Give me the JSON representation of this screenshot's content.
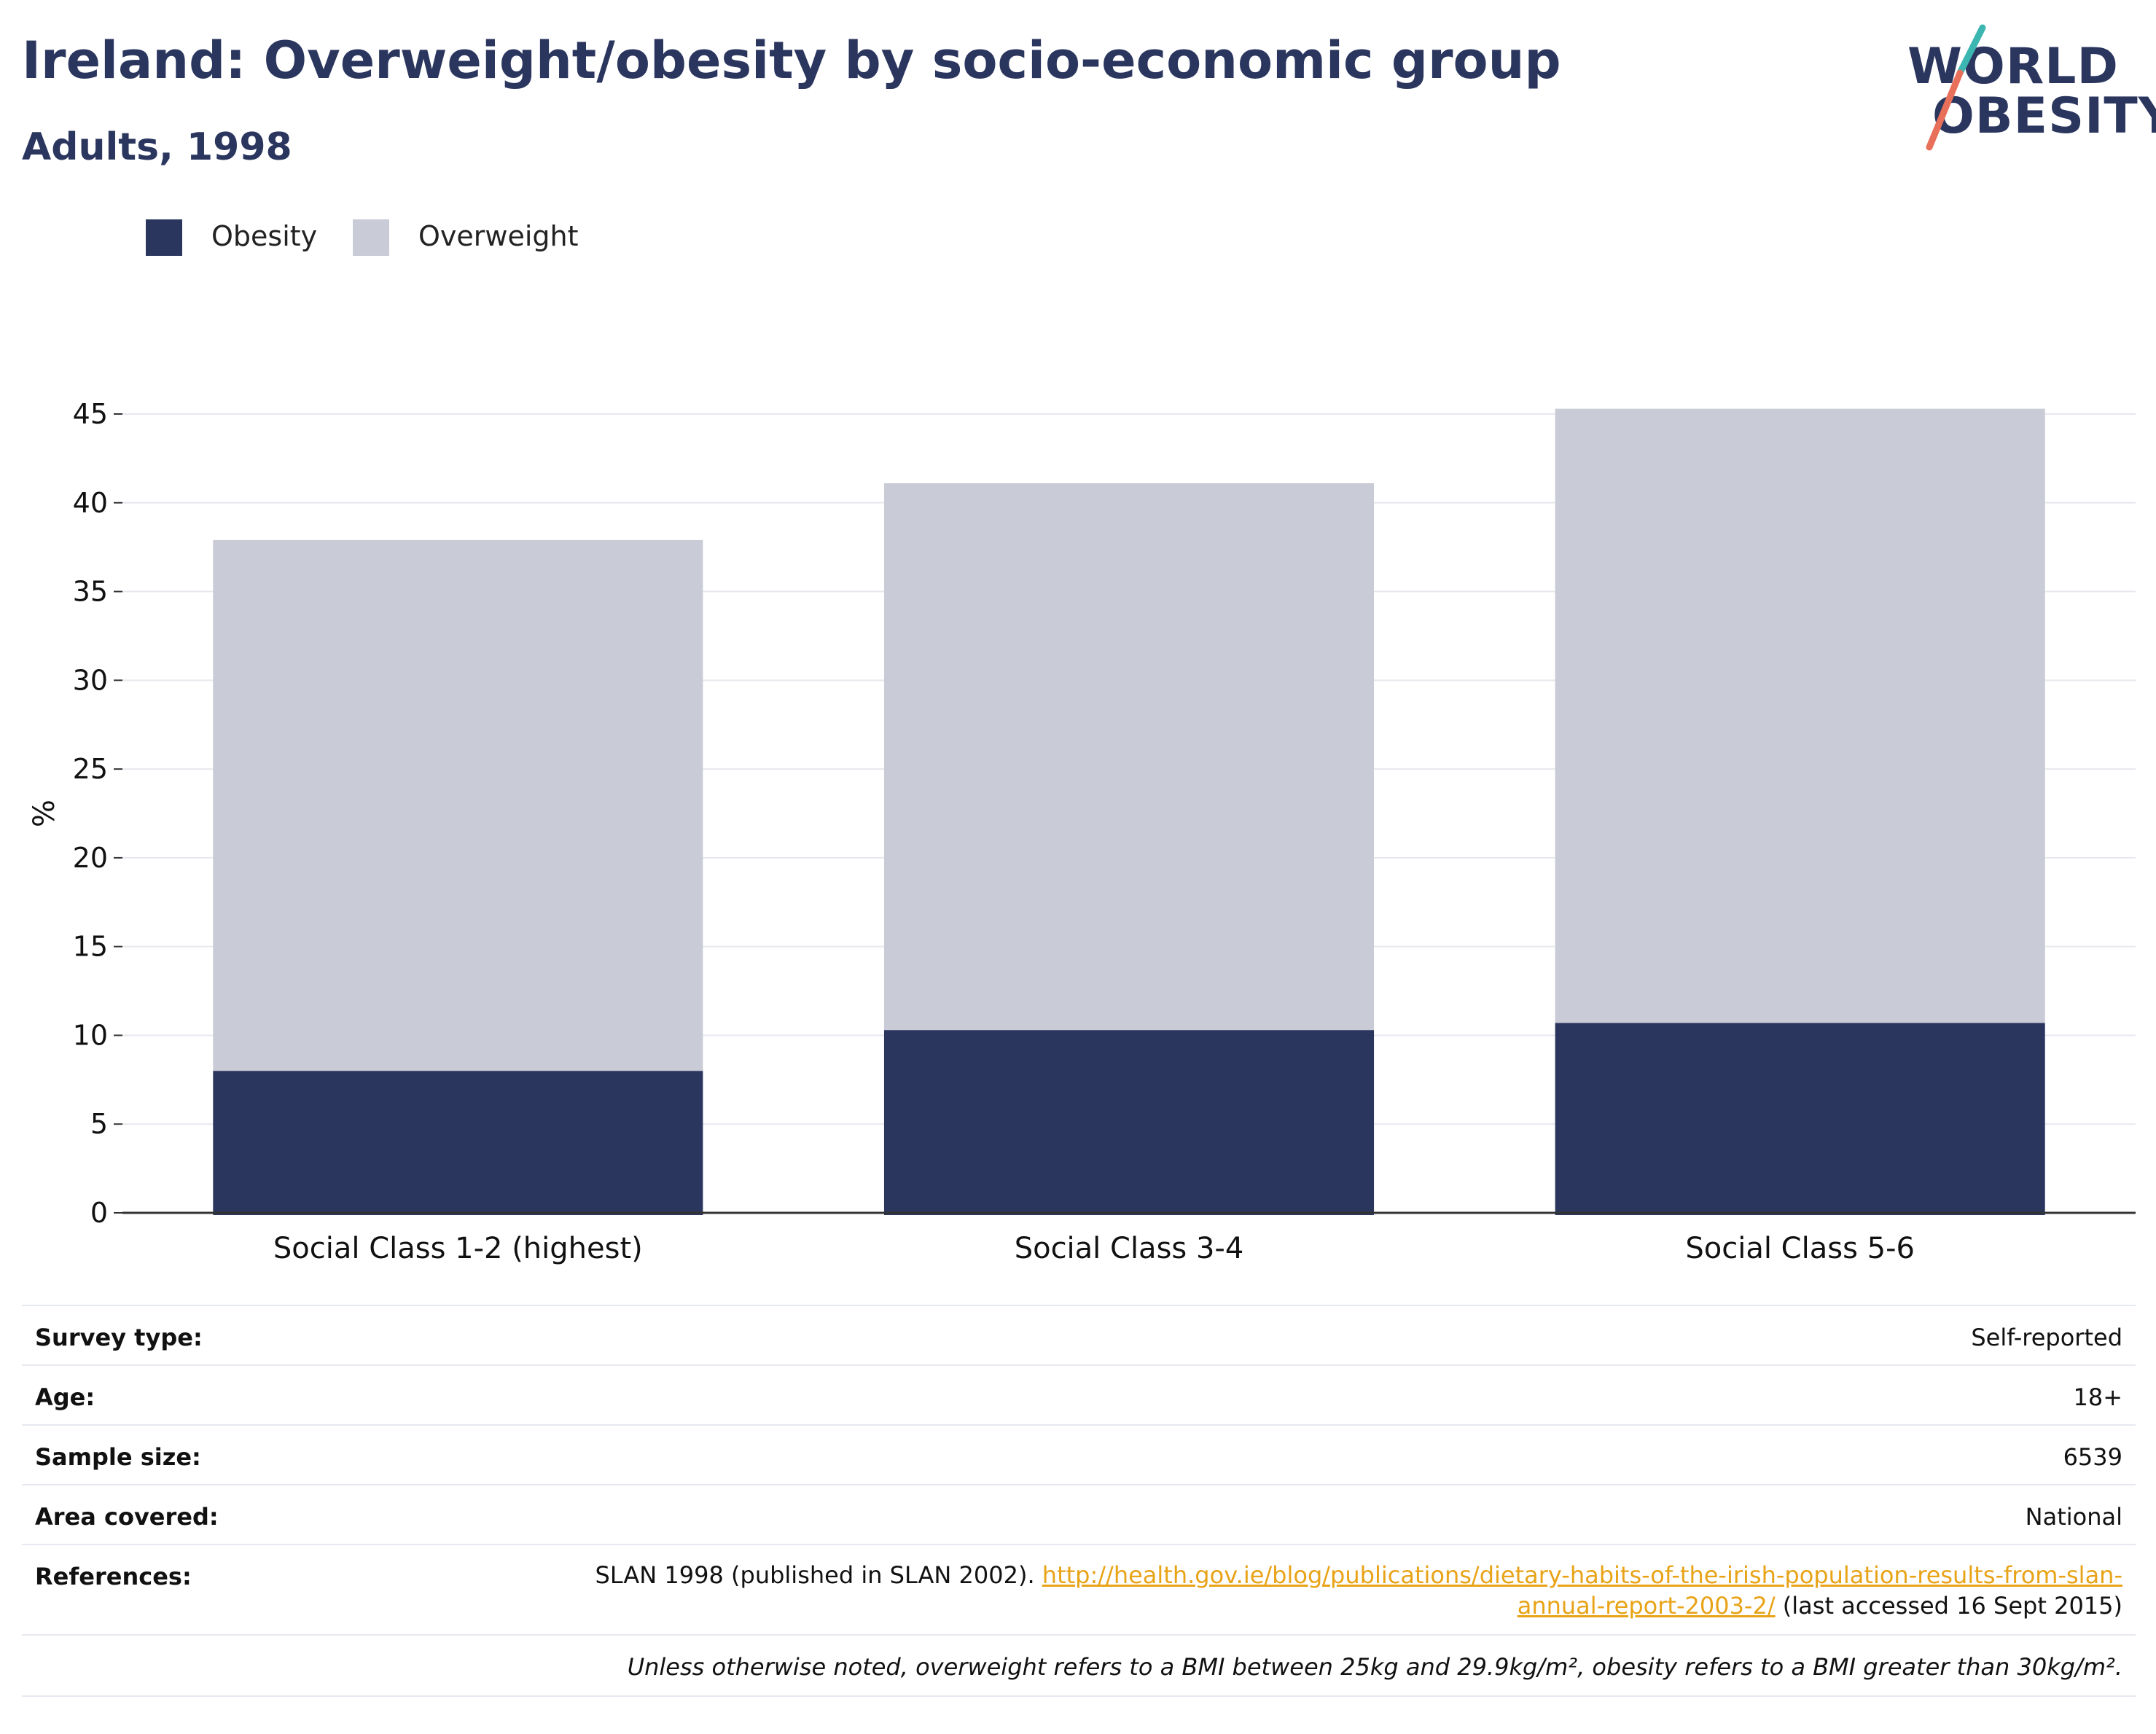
{
  "header": {
    "title": "Ireland: Overweight/obesity by socio-economic group",
    "subtitle": "Adults, 1998"
  },
  "logo": {
    "line1": "WORLD",
    "line2": "OBESITY",
    "accent_teal": "#3bb6b0",
    "accent_coral": "#e8705a"
  },
  "colors": {
    "obesity": "#2b365f",
    "overweight": "#c9cbd6",
    "text": "#2b365f",
    "link": "#e8a317"
  },
  "chart_data": {
    "type": "bar",
    "stacked": true,
    "categories": [
      "Social Class 1-2 (highest)",
      "Social Class 3-4",
      "Social Class 5-6"
    ],
    "series": [
      {
        "name": "Obesity",
        "values": [
          8,
          10.3,
          10.7
        ]
      },
      {
        "name": "Overweight",
        "values": [
          29.9,
          30.8,
          34.6
        ]
      }
    ],
    "totals": [
      37.9,
      41.1,
      45.3
    ],
    "ylabel": "%",
    "ylim": [
      0,
      45
    ],
    "yticks": [
      0,
      5,
      10,
      15,
      20,
      25,
      30,
      35,
      40,
      45
    ],
    "grid": true,
    "legend_position": "top-left"
  },
  "legend": [
    {
      "label": "Obesity"
    },
    {
      "label": "Overweight"
    }
  ],
  "metadata": {
    "survey_type": {
      "label": "Survey type:",
      "value": "Self-reported"
    },
    "age": {
      "label": "Age:",
      "value": "18+"
    },
    "sample_size": {
      "label": "Sample size:",
      "value": "6539"
    },
    "area_covered": {
      "label": "Area covered:",
      "value": "National"
    },
    "references": {
      "label": "References:",
      "text_before": "SLAN 1998 (published in SLAN 2002). ",
      "link": "http://health.gov.ie/blog/publications/dietary-habits-of-the-irish-population-results-from-slan-annual-report-2003-2/",
      "text_after": " (last accessed 16 Sept 2015)"
    },
    "note": "Unless otherwise noted, overweight refers to a BMI between 25kg and 29.9kg/m², obesity refers to a BMI greater than 30kg/m²."
  }
}
